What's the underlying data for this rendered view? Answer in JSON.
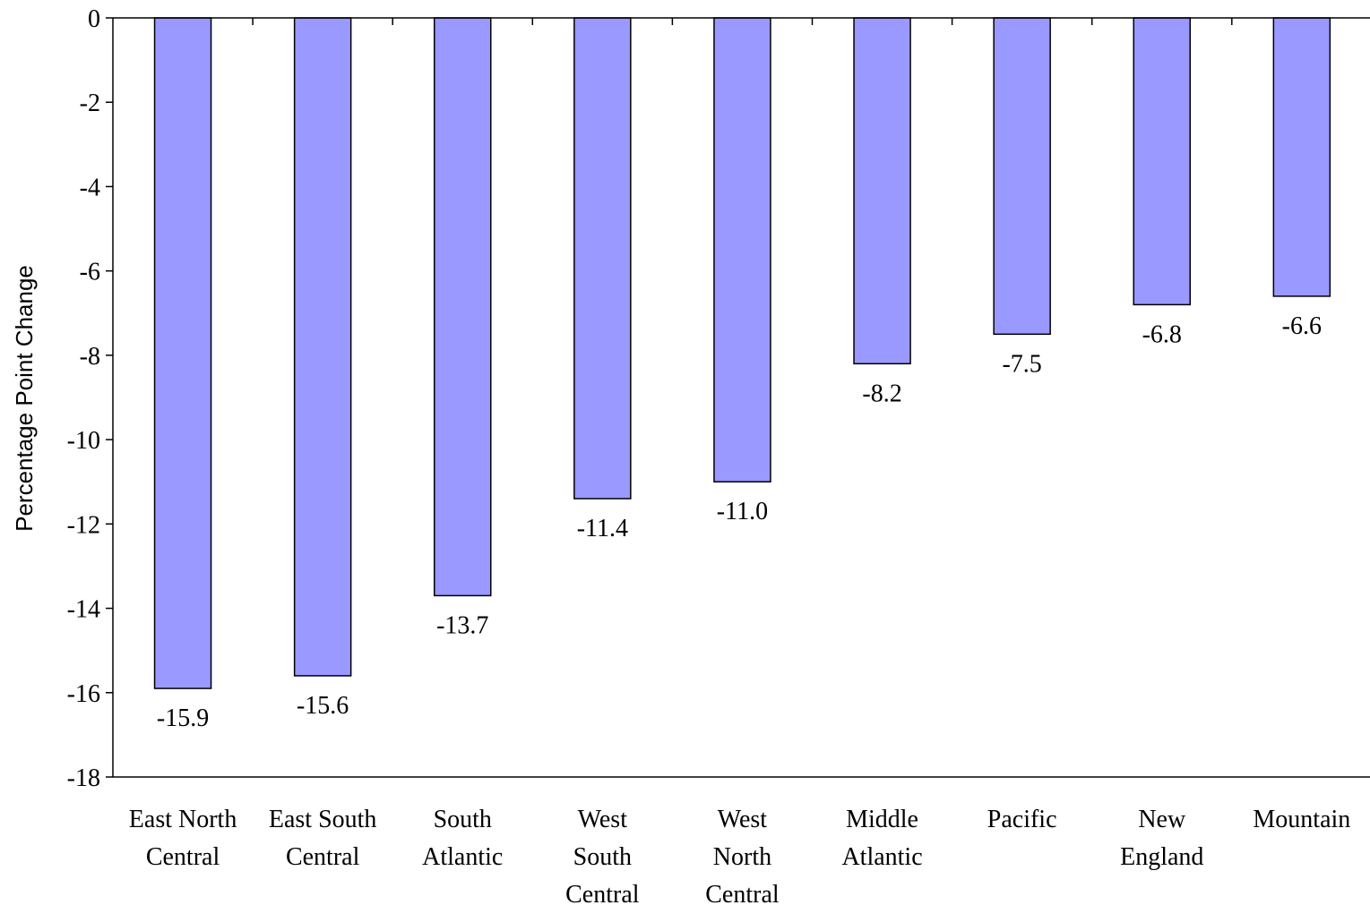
{
  "chart_data": {
    "type": "bar",
    "title": "",
    "xlabel": "",
    "ylabel": "Percentage Point Change",
    "ylim": [
      -18,
      0
    ],
    "yticks": [
      0,
      -2,
      -4,
      -6,
      -8,
      -10,
      -12,
      -14,
      -16,
      -18
    ],
    "grid": false,
    "categories": [
      [
        "East North",
        "Central"
      ],
      [
        "East South",
        "Central"
      ],
      [
        "South",
        "Atlantic"
      ],
      [
        "West",
        "South",
        "Central"
      ],
      [
        "West",
        "North",
        "Central"
      ],
      [
        "Middle",
        "Atlantic"
      ],
      [
        "Pacific"
      ],
      [
        "New",
        "England"
      ],
      [
        "Mountain"
      ]
    ],
    "values": [
      -15.9,
      -15.6,
      -13.7,
      -11.4,
      -11.0,
      -8.2,
      -7.5,
      -6.8,
      -6.6
    ],
    "value_labels": [
      "-15.9",
      "-15.6",
      "-13.7",
      "-11.4",
      "-11.0",
      "-8.2",
      "-7.5",
      "-6.8",
      "-6.6"
    ],
    "bar_color": "#9999ff",
    "bar_edge_color": "#000000"
  }
}
